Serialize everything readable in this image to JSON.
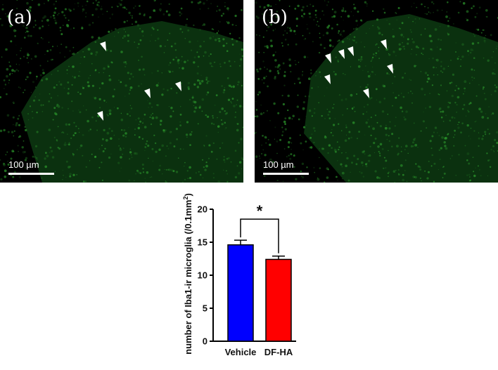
{
  "panels": [
    {
      "label": "(a)",
      "scale_bar": "100 µm",
      "arrowhead_count": 4
    },
    {
      "label": "(b)",
      "scale_bar": "100 µm",
      "arrowhead_count": 7
    }
  ],
  "colors": {
    "fluorescence": "#2e9e2e",
    "background": "#000000",
    "vehicle": "#0000ff",
    "df_ha": "#ff0000"
  },
  "chart_data": {
    "type": "bar",
    "categories": [
      "Vehicle",
      "DF-HA"
    ],
    "values": [
      14.6,
      12.4
    ],
    "errors": [
      0.7,
      0.5
    ],
    "colors": [
      "#0000ff",
      "#ff0000"
    ],
    "ylabel_prefix": "number of Iba1-ir microglia (/0.1mm",
    "ylabel_superscript": "2",
    "ylabel_suffix": ")",
    "ylim": [
      0,
      20
    ],
    "yticks": [
      "0",
      "5",
      "10",
      "15",
      "20"
    ],
    "significance": "*",
    "grid": false
  }
}
